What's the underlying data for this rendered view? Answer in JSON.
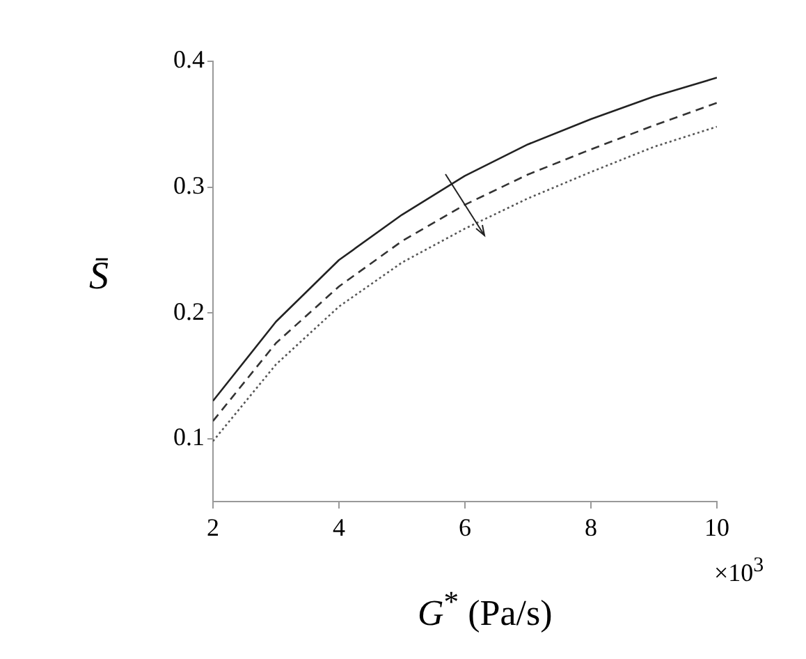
{
  "chart_data": {
    "type": "line",
    "xlabel": "G$^{*}$ (Pa/s)",
    "ylabel": "S̄",
    "annotations": [
      "×10$^{3}$"
    ],
    "x": [
      2,
      3,
      4,
      5,
      6,
      7,
      8,
      9,
      10
    ],
    "series": [
      {
        "color": "#222222",
        "line_style": "solid",
        "values": [
          0.13,
          0.193,
          0.242,
          0.278,
          0.309,
          0.334,
          0.354,
          0.372,
          0.387
        ]
      },
      {
        "color": "#333333",
        "line_style": "dashed",
        "values": [
          0.114,
          0.176,
          0.221,
          0.257,
          0.286,
          0.31,
          0.33,
          0.349,
          0.367
        ]
      },
      {
        "color": "#555555",
        "line_style": "dotted",
        "values": [
          0.098,
          0.159,
          0.205,
          0.24,
          0.267,
          0.291,
          0.312,
          0.332,
          0.348
        ]
      }
    ],
    "xlim": [
      2,
      10
    ],
    "xticks": [
      2,
      4,
      6,
      8,
      10
    ],
    "ylim": [
      0.05,
      0.4
    ],
    "yticks": [
      0.1,
      0.2,
      0.3,
      0.4
    ],
    "grid": false,
    "legend": false
  }
}
